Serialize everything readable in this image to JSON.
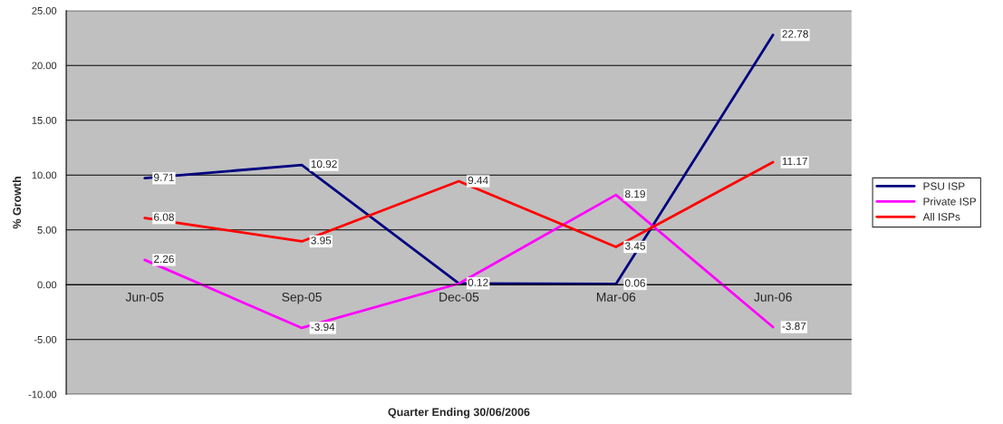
{
  "chart_data": {
    "type": "line",
    "xlabel": "Quarter Ending 30/06/2006",
    "ylabel": "% Growth",
    "categories": [
      "Jun-05",
      "Sep-05",
      "Dec-05",
      "Mar-06",
      "Jun-06"
    ],
    "series": [
      {
        "name": "PSU ISP",
        "color": "#000080",
        "values": [
          9.71,
          10.92,
          0.12,
          0.06,
          22.78
        ],
        "value_labels": [
          "9.71",
          "10.92",
          "0.12",
          "0.06",
          "22.78"
        ]
      },
      {
        "name": "Private ISP",
        "color": "#ff00ff",
        "values": [
          2.26,
          -3.94,
          0.1,
          8.19,
          -3.87
        ],
        "value_labels": [
          "2.26",
          "-3.94",
          null,
          "8.19",
          "-3.87"
        ]
      },
      {
        "name": "All ISPs",
        "color": "#ff0000",
        "values": [
          6.08,
          3.95,
          9.44,
          3.45,
          11.17
        ],
        "value_labels": [
          "6.08",
          "3.95",
          "9.44",
          "3.45",
          "11.17"
        ]
      }
    ],
    "ylim": [
      -10,
      25
    ],
    "yticks": [
      {
        "value": -10,
        "label": "-10.00"
      },
      {
        "value": -5,
        "label": "-5.00"
      },
      {
        "value": 0,
        "label": "0.00"
      },
      {
        "value": 5,
        "label": "5.00"
      },
      {
        "value": 10,
        "label": "10.00"
      },
      {
        "value": 15,
        "label": "15.00"
      },
      {
        "value": 20,
        "label": "20.00"
      },
      {
        "value": 25,
        "label": "25.00"
      }
    ],
    "grid": "y",
    "legend": "right",
    "line_style": "solid"
  }
}
